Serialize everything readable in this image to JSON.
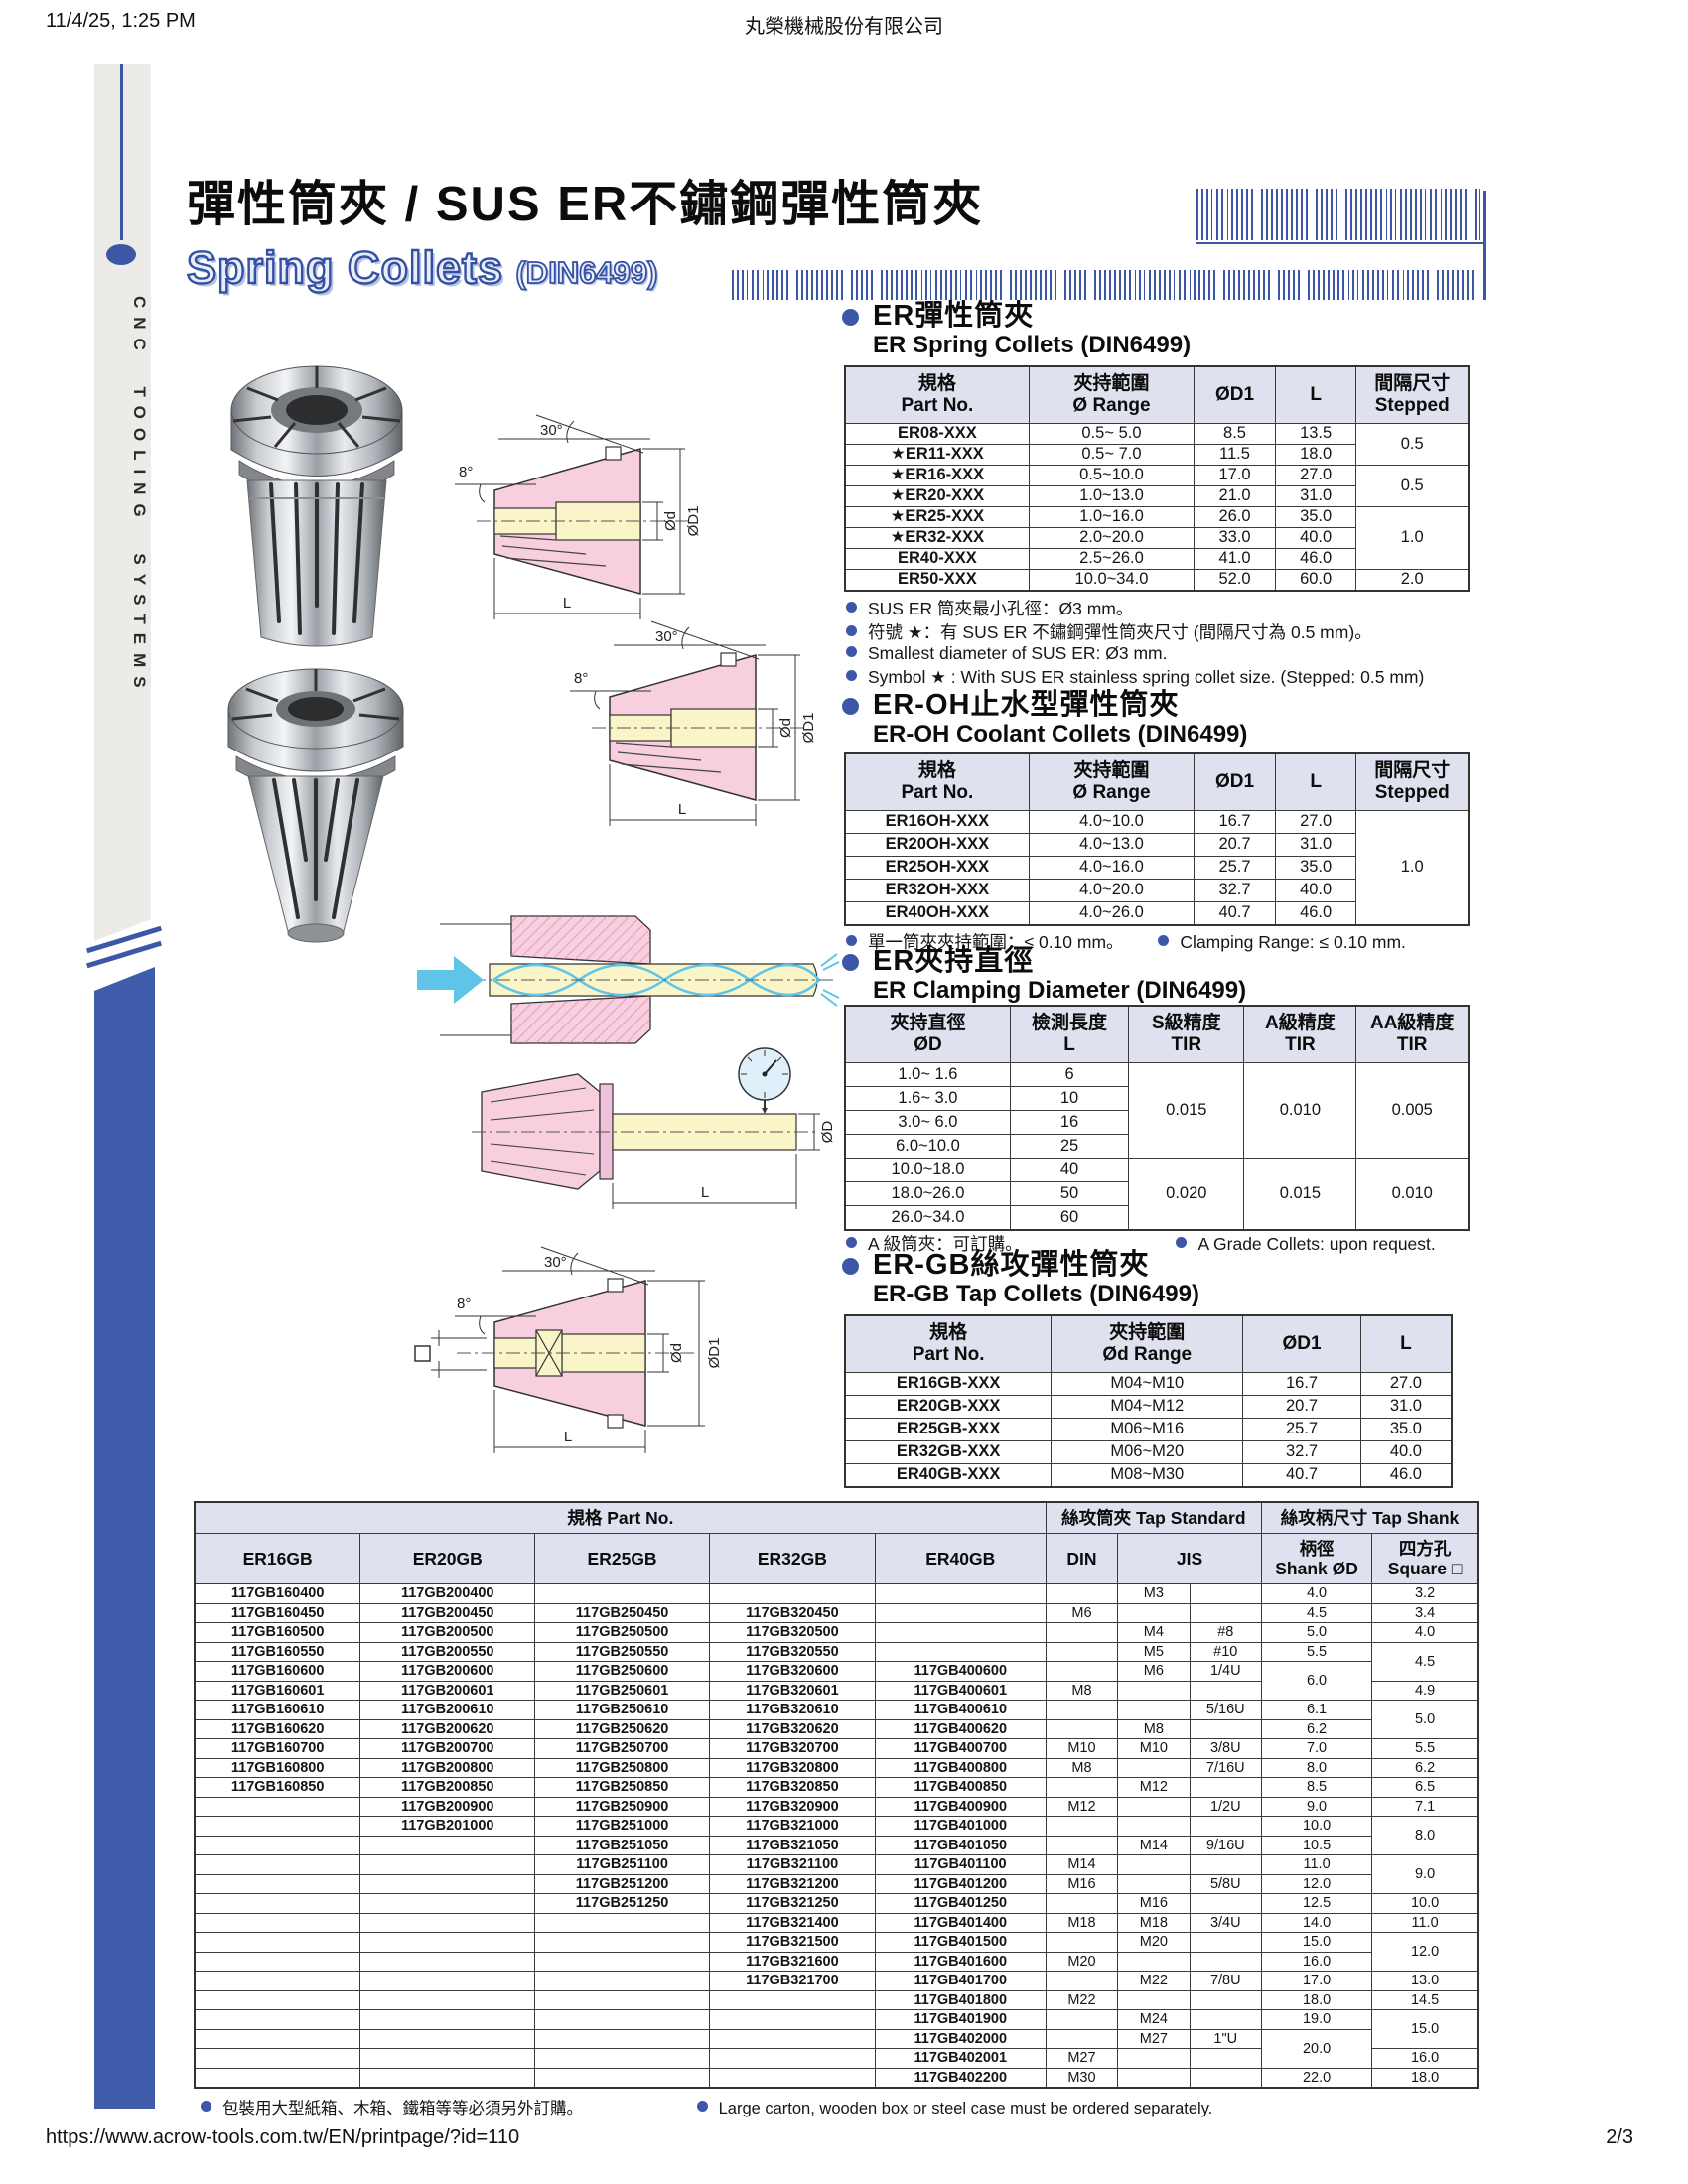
{
  "meta": {
    "datetime": "11/4/25, 1:25 PM",
    "company": "丸榮機械股份有限公司",
    "url": "https://www.acrow-tools.com.tw/EN/printpage/?id=110",
    "page": "2/3"
  },
  "accent_color": "#3c57a6",
  "sidebar": {
    "vertical_text": "CNC TOOLING SYSTEMS"
  },
  "banner": {
    "title_zh": "彈性筒夾 / SUS ER不鏽鋼彈性筒夾",
    "title_en": "Spring Collets",
    "title_en_sub": "(DIN6499)"
  },
  "labels": {
    "angle30": "30°",
    "angle8": "8°",
    "od": "Ød",
    "od1": "ØD1",
    "len": "L",
    "odcap": "ØD"
  },
  "sections": {
    "s1": {
      "zh": "ER彈性筒夾",
      "en": "ER Spring Collets (DIN6499)"
    },
    "s2": {
      "zh": "ER-OH止水型彈性筒夾",
      "en": "ER-OH Coolant Collets (DIN6499)"
    },
    "s3": {
      "zh": "ER夾持直徑",
      "en": "ER Clamping Diameter (DIN6499)"
    },
    "s4": {
      "zh": "ER-GB絲攻彈性筒夾",
      "en": "ER-GB Tap Collets (DIN6499)"
    }
  },
  "notes": {
    "n1": [
      "SUS ER 筒夾最小孔徑：Ø3 mm。",
      "符號 ★：有 SUS ER 不鏽鋼彈性筒夾尺寸 (間隔尺寸為 0.5 mm)。",
      "Smallest diameter of SUS ER: Ø3 mm.",
      "Symbol ★ : With SUS ER stainless spring collet size. (Stepped: 0.5 mm)"
    ],
    "n2a": "單一筒夾夾持範圍：≤ 0.10 mm。",
    "n2b": "Clamping  Range: ≤ 0.10 mm.",
    "n3a": "A 級筒夾：可訂購。",
    "n3b": "A Grade Collets: upon request.",
    "n5a": "包裝用大型紙箱、木箱、鐵箱等等必須另外訂購。",
    "n5b": "Large carton, wooden box or steel case must be ordered separately."
  },
  "tables": {
    "er_spring": {
      "widths": [
        29.5,
        26.5,
        13,
        13,
        18
      ],
      "head": [
        [
          {
            "lines": [
              "規格",
              "Part No."
            ]
          },
          {
            "lines": [
              "夾持範圍",
              "Ø Range"
            ]
          },
          {
            "lines": [
              "ØD1"
            ]
          },
          {
            "lines": [
              "L"
            ]
          },
          {
            "lines": [
              "間隔尺寸",
              "Stepped"
            ]
          }
        ]
      ],
      "rows": [
        [
          {
            "v": "ER08-XXX",
            "b": 1
          },
          "0.5~ 5.0",
          "8.5",
          "13.5",
          {
            "v": "0.5",
            "rs": 2
          }
        ],
        [
          {
            "v": "★ER11-XXX",
            "b": 1
          },
          "0.5~ 7.0",
          "11.5",
          "18.0"
        ],
        [
          {
            "v": "★ER16-XXX",
            "b": 1
          },
          "0.5~10.0",
          "17.0",
          "27.0",
          {
            "v": "0.5",
            "rs": 2
          }
        ],
        [
          {
            "v": "★ER20-XXX",
            "b": 1
          },
          "1.0~13.0",
          "21.0",
          "31.0"
        ],
        [
          {
            "v": "★ER25-XXX",
            "b": 1
          },
          "1.0~16.0",
          "26.0",
          "35.0",
          {
            "v": "1.0",
            "rs": 3
          }
        ],
        [
          {
            "v": "★ER32-XXX",
            "b": 1
          },
          "2.0~20.0",
          "33.0",
          "40.0"
        ],
        [
          {
            "v": "ER40-XXX",
            "b": 1
          },
          "2.5~26.0",
          "41.0",
          "46.0"
        ],
        [
          {
            "v": "ER50-XXX",
            "b": 1
          },
          "10.0~34.0",
          "52.0",
          "60.0",
          "2.0"
        ]
      ]
    },
    "er_oh": {
      "widths": [
        29.5,
        26.5,
        13,
        13,
        18
      ],
      "head": [
        [
          {
            "lines": [
              "規格",
              "Part No."
            ]
          },
          {
            "lines": [
              "夾持範圍",
              "Ø Range"
            ]
          },
          {
            "lines": [
              "ØD1"
            ]
          },
          {
            "lines": [
              "L"
            ]
          },
          {
            "lines": [
              "間隔尺寸",
              "Stepped"
            ]
          }
        ]
      ],
      "rows": [
        [
          {
            "v": "ER16OH-XXX",
            "b": 1
          },
          "4.0~10.0",
          "16.7",
          "27.0",
          {
            "v": "1.0",
            "rs": 5
          }
        ],
        [
          {
            "v": "ER20OH-XXX",
            "b": 1
          },
          "4.0~13.0",
          "20.7",
          "31.0"
        ],
        [
          {
            "v": "ER25OH-XXX",
            "b": 1
          },
          "4.0~16.0",
          "25.7",
          "35.0"
        ],
        [
          {
            "v": "ER32OH-XXX",
            "b": 1
          },
          "4.0~20.0",
          "32.7",
          "40.0"
        ],
        [
          {
            "v": "ER40OH-XXX",
            "b": 1
          },
          "4.0~26.0",
          "40.7",
          "46.0"
        ]
      ]
    },
    "clamping": {
      "widths": [
        26.5,
        19,
        18.5,
        18,
        18
      ],
      "head": [
        [
          {
            "lines": [
              "夾持直徑",
              "ØD"
            ]
          },
          {
            "lines": [
              "檢測長度",
              "L"
            ]
          },
          {
            "lines": [
              "S級精度",
              "TIR"
            ]
          },
          {
            "lines": [
              "A級精度",
              "TIR"
            ]
          },
          {
            "lines": [
              "AA級精度",
              "TIR"
            ]
          }
        ]
      ],
      "rows": [
        [
          "1.0~ 1.6",
          "6",
          {
            "v": "0.015",
            "rs": 4
          },
          {
            "v": "0.010",
            "rs": 4
          },
          {
            "v": "0.005",
            "rs": 4
          }
        ],
        [
          "1.6~ 3.0",
          "10"
        ],
        [
          "3.0~ 6.0",
          "16"
        ],
        [
          "6.0~10.0",
          "25"
        ],
        [
          "10.0~18.0",
          "40",
          {
            "v": "0.020",
            "rs": 3
          },
          {
            "v": "0.015",
            "rs": 3
          },
          {
            "v": "0.010",
            "rs": 3
          }
        ],
        [
          "18.0~26.0",
          "50"
        ],
        [
          "26.0~34.0",
          "60"
        ]
      ]
    },
    "er_gb": {
      "widths": [
        34,
        31.6,
        19.4,
        15
      ],
      "head": [
        [
          {
            "lines": [
              "規格",
              "Part No."
            ]
          },
          {
            "lines": [
              "夾持範圍",
              "Ød Range"
            ]
          },
          {
            "lines": [
              "ØD1"
            ]
          },
          {
            "lines": [
              "L"
            ]
          }
        ]
      ],
      "rows": [
        [
          {
            "v": "ER16GB-XXX",
            "b": 1
          },
          "M04~M10",
          "16.7",
          "27.0"
        ],
        [
          {
            "v": "ER20GB-XXX",
            "b": 1
          },
          "M04~M12",
          "20.7",
          "31.0"
        ],
        [
          {
            "v": "ER25GB-XXX",
            "b": 1
          },
          "M06~M16",
          "25.7",
          "35.0"
        ],
        [
          {
            "v": "ER32GB-XXX",
            "b": 1
          },
          "M06~M20",
          "32.7",
          "40.0"
        ],
        [
          {
            "v": "ER40GB-XXX",
            "b": 1
          },
          "M08~M30",
          "40.7",
          "46.0"
        ]
      ]
    },
    "tap": {
      "widths": [
        12.9,
        13.6,
        13.6,
        12.9,
        13.3,
        5.6,
        5.6,
        5.6,
        8.6,
        8.3
      ],
      "head": [
        [
          {
            "lines": [
              "規格  Part No."
            ],
            "cs": 5
          },
          {
            "lines": [
              "絲攻筒夾  Tap Standard"
            ],
            "cs": 3
          },
          {
            "lines": [
              "絲攻柄尺寸  Tap Shank"
            ],
            "cs": 2
          }
        ],
        [
          {
            "lines": [
              "ER16GB"
            ]
          },
          {
            "lines": [
              "ER20GB"
            ]
          },
          {
            "lines": [
              "ER25GB"
            ]
          },
          {
            "lines": [
              "ER32GB"
            ]
          },
          {
            "lines": [
              "ER40GB"
            ]
          },
          {
            "lines": [
              "DIN"
            ]
          },
          {
            "lines": [
              "JIS"
            ],
            "cs": 2
          },
          {
            "lines": [
              "柄徑",
              "Shank ØD"
            ]
          },
          {
            "lines": [
              "四方孔",
              "Square □"
            ]
          }
        ]
      ],
      "rows": [
        [
          {
            "v": "117GB160400",
            "b": 1
          },
          {
            "v": "117GB200400",
            "b": 1
          },
          "",
          "",
          "",
          "",
          "M3",
          "",
          "4.0",
          "3.2"
        ],
        [
          {
            "v": "117GB160450",
            "b": 1
          },
          {
            "v": "117GB200450",
            "b": 1
          },
          {
            "v": "117GB250450",
            "b": 1
          },
          {
            "v": "117GB320450",
            "b": 1
          },
          "",
          "M6",
          "",
          "",
          "4.5",
          "3.4"
        ],
        [
          {
            "v": "117GB160500",
            "b": 1
          },
          {
            "v": "117GB200500",
            "b": 1
          },
          {
            "v": "117GB250500",
            "b": 1
          },
          {
            "v": "117GB320500",
            "b": 1
          },
          "",
          "",
          "M4",
          "#8",
          "5.0",
          "4.0"
        ],
        [
          {
            "v": "117GB160550",
            "b": 1
          },
          {
            "v": "117GB200550",
            "b": 1
          },
          {
            "v": "117GB250550",
            "b": 1
          },
          {
            "v": "117GB320550",
            "b": 1
          },
          "",
          "",
          "M5",
          "#10",
          "5.5",
          {
            "v": "4.5",
            "rs": 2
          }
        ],
        [
          {
            "v": "117GB160600",
            "b": 1
          },
          {
            "v": "117GB200600",
            "b": 1
          },
          {
            "v": "117GB250600",
            "b": 1
          },
          {
            "v": "117GB320600",
            "b": 1
          },
          {
            "v": "117GB400600",
            "b": 1
          },
          "",
          "M6",
          "1/4U",
          {
            "v": "6.0",
            "rs": 2
          }
        ],
        [
          {
            "v": "117GB160601",
            "b": 1
          },
          {
            "v": "117GB200601",
            "b": 1
          },
          {
            "v": "117GB250601",
            "b": 1
          },
          {
            "v": "117GB320601",
            "b": 1
          },
          {
            "v": "117GB400601",
            "b": 1
          },
          "M8",
          "",
          "",
          "4.9"
        ],
        [
          {
            "v": "117GB160610",
            "b": 1
          },
          {
            "v": "117GB200610",
            "b": 1
          },
          {
            "v": "117GB250610",
            "b": 1
          },
          {
            "v": "117GB320610",
            "b": 1
          },
          {
            "v": "117GB400610",
            "b": 1
          },
          "",
          "",
          "5/16U",
          "6.1",
          {
            "v": "5.0",
            "rs": 2
          }
        ],
        [
          {
            "v": "117GB160620",
            "b": 1
          },
          {
            "v": "117GB200620",
            "b": 1
          },
          {
            "v": "117GB250620",
            "b": 1
          },
          {
            "v": "117GB320620",
            "b": 1
          },
          {
            "v": "117GB400620",
            "b": 1
          },
          "",
          "M8",
          "",
          "6.2"
        ],
        [
          {
            "v": "117GB160700",
            "b": 1
          },
          {
            "v": "117GB200700",
            "b": 1
          },
          {
            "v": "117GB250700",
            "b": 1
          },
          {
            "v": "117GB320700",
            "b": 1
          },
          {
            "v": "117GB400700",
            "b": 1
          },
          "M10",
          "M10",
          "3/8U",
          "7.0",
          "5.5"
        ],
        [
          {
            "v": "117GB160800",
            "b": 1
          },
          {
            "v": "117GB200800",
            "b": 1
          },
          {
            "v": "117GB250800",
            "b": 1
          },
          {
            "v": "117GB320800",
            "b": 1
          },
          {
            "v": "117GB400800",
            "b": 1
          },
          "M8",
          "",
          "7/16U",
          "8.0",
          "6.2"
        ],
        [
          {
            "v": "117GB160850",
            "b": 1
          },
          {
            "v": "117GB200850",
            "b": 1
          },
          {
            "v": "117GB250850",
            "b": 1
          },
          {
            "v": "117GB320850",
            "b": 1
          },
          {
            "v": "117GB400850",
            "b": 1
          },
          "",
          "M12",
          "",
          "8.5",
          "6.5"
        ],
        [
          "",
          {
            "v": "117GB200900",
            "b": 1
          },
          {
            "v": "117GB250900",
            "b": 1
          },
          {
            "v": "117GB320900",
            "b": 1
          },
          {
            "v": "117GB400900",
            "b": 1
          },
          "M12",
          "",
          "1/2U",
          "9.0",
          "7.1"
        ],
        [
          "",
          {
            "v": "117GB201000",
            "b": 1
          },
          {
            "v": "117GB251000",
            "b": 1
          },
          {
            "v": "117GB321000",
            "b": 1
          },
          {
            "v": "117GB401000",
            "b": 1
          },
          "",
          "",
          "",
          "10.0",
          {
            "v": "8.0",
            "rs": 2
          }
        ],
        [
          "",
          "",
          {
            "v": "117GB251050",
            "b": 1
          },
          {
            "v": "117GB321050",
            "b": 1
          },
          {
            "v": "117GB401050",
            "b": 1
          },
          "",
          "M14",
          "9/16U",
          "10.5"
        ],
        [
          "",
          "",
          {
            "v": "117GB251100",
            "b": 1
          },
          {
            "v": "117GB321100",
            "b": 1
          },
          {
            "v": "117GB401100",
            "b": 1
          },
          "M14",
          "",
          "",
          "11.0",
          {
            "v": "9.0",
            "rs": 2
          }
        ],
        [
          "",
          "",
          {
            "v": "117GB251200",
            "b": 1
          },
          {
            "v": "117GB321200",
            "b": 1
          },
          {
            "v": "117GB401200",
            "b": 1
          },
          "M16",
          "",
          "5/8U",
          "12.0"
        ],
        [
          "",
          "",
          {
            "v": "117GB251250",
            "b": 1
          },
          {
            "v": "117GB321250",
            "b": 1
          },
          {
            "v": "117GB401250",
            "b": 1
          },
          "",
          "M16",
          "",
          "12.5",
          "10.0"
        ],
        [
          "",
          "",
          "",
          {
            "v": "117GB321400",
            "b": 1
          },
          {
            "v": "117GB401400",
            "b": 1
          },
          "M18",
          "M18",
          "3/4U",
          "14.0",
          "11.0"
        ],
        [
          "",
          "",
          "",
          {
            "v": "117GB321500",
            "b": 1
          },
          {
            "v": "117GB401500",
            "b": 1
          },
          "",
          "M20",
          "",
          "15.0",
          {
            "v": "12.0",
            "rs": 2
          }
        ],
        [
          "",
          "",
          "",
          {
            "v": "117GB321600",
            "b": 1
          },
          {
            "v": "117GB401600",
            "b": 1
          },
          "M20",
          "",
          "",
          "16.0"
        ],
        [
          "",
          "",
          "",
          {
            "v": "117GB321700",
            "b": 1
          },
          {
            "v": "117GB401700",
            "b": 1
          },
          "",
          "M22",
          "7/8U",
          "17.0",
          "13.0"
        ],
        [
          "",
          "",
          "",
          "",
          {
            "v": "117GB401800",
            "b": 1
          },
          "M22",
          "",
          "",
          "18.0",
          "14.5"
        ],
        [
          "",
          "",
          "",
          "",
          {
            "v": "117GB401900",
            "b": 1
          },
          "",
          "M24",
          "",
          "19.0",
          {
            "v": "15.0",
            "rs": 2
          }
        ],
        [
          "",
          "",
          "",
          "",
          {
            "v": "117GB402000",
            "b": 1
          },
          "",
          "M27",
          "1\"U",
          {
            "v": "20.0",
            "rs": 2
          }
        ],
        [
          "",
          "",
          "",
          "",
          {
            "v": "117GB402001",
            "b": 1
          },
          "M27",
          "",
          "",
          "16.0"
        ],
        [
          "",
          "",
          "",
          "",
          {
            "v": "117GB402200",
            "b": 1
          },
          "M30",
          "",
          "",
          "22.0",
          "18.0"
        ]
      ]
    }
  }
}
